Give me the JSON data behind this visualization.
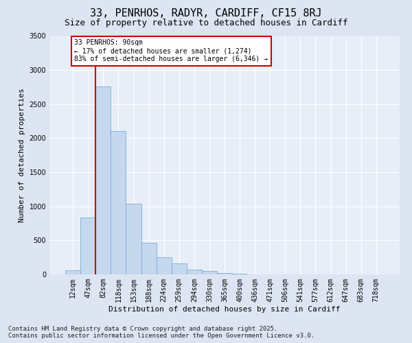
{
  "title_line1": "33, PENRHOS, RADYR, CARDIFF, CF15 8RJ",
  "title_line2": "Size of property relative to detached houses in Cardiff",
  "xlabel": "Distribution of detached houses by size in Cardiff",
  "ylabel": "Number of detached properties",
  "categories": [
    "12sqm",
    "47sqm",
    "82sqm",
    "118sqm",
    "153sqm",
    "188sqm",
    "224sqm",
    "259sqm",
    "294sqm",
    "330sqm",
    "365sqm",
    "400sqm",
    "436sqm",
    "471sqm",
    "506sqm",
    "541sqm",
    "577sqm",
    "612sqm",
    "647sqm",
    "683sqm",
    "718sqm"
  ],
  "values": [
    60,
    840,
    2760,
    2100,
    1040,
    460,
    250,
    160,
    70,
    50,
    20,
    10,
    5,
    2,
    0,
    0,
    0,
    0,
    0,
    0,
    0
  ],
  "bar_color": "#c5d8ee",
  "bar_edge_color": "#7aadd4",
  "red_line_x": 1.5,
  "annotation_text": "33 PENRHOS: 90sqm\n← 17% of detached houses are smaller (1,274)\n83% of semi-detached houses are larger (6,346) →",
  "annotation_box_facecolor": "#ffffff",
  "annotation_box_edgecolor": "#cc0000",
  "ylim": [
    0,
    3500
  ],
  "yticks": [
    0,
    500,
    1000,
    1500,
    2000,
    2500,
    3000,
    3500
  ],
  "bg_color": "#dde5f2",
  "plot_bg_color": "#e8eef8",
  "grid_color": "#ffffff",
  "footer_line1": "Contains HM Land Registry data © Crown copyright and database right 2025.",
  "footer_line2": "Contains public sector information licensed under the Open Government Licence v3.0.",
  "title_fontsize": 11,
  "subtitle_fontsize": 9,
  "tick_fontsize": 7,
  "ylabel_fontsize": 8,
  "xlabel_fontsize": 8,
  "footer_fontsize": 6.5
}
